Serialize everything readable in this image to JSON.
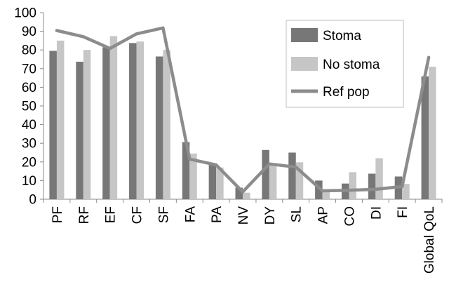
{
  "chart_data": {
    "type": "bar",
    "categories": [
      "PF",
      "RF",
      "EF",
      "CF",
      "SF",
      "FA",
      "PA",
      "NV",
      "DY",
      "SL",
      "AP",
      "CO",
      "DI",
      "FI",
      "Global QoL"
    ],
    "series": [
      {
        "name": "Stoma",
        "type": "bar",
        "color": "#777777",
        "values": [
          79.5,
          73.7,
          81.4,
          83.7,
          76.5,
          30.6,
          18.6,
          6.2,
          26.4,
          25.0,
          10.0,
          8.4,
          13.7,
          12.2,
          65.8
        ]
      },
      {
        "name": "No stoma",
        "type": "bar",
        "color": "#c6c6c6",
        "values": [
          85.0,
          80.0,
          87.4,
          84.5,
          80.0,
          24.5,
          17.0,
          3.5,
          19.0,
          19.8,
          5.0,
          14.5,
          22.0,
          8.2,
          71.0
        ]
      },
      {
        "name": "Ref pop",
        "type": "line",
        "color": "#8c8c8c",
        "values": [
          90.4,
          87.1,
          80.8,
          88.6,
          91.8,
          21.5,
          18.4,
          3.9,
          18.9,
          17.2,
          4.5,
          4.8,
          5.3,
          6.8,
          76.0
        ]
      }
    ],
    "ylim": [
      0,
      100
    ],
    "yticks": [
      0,
      10,
      20,
      30,
      40,
      50,
      60,
      70,
      80,
      90,
      100
    ],
    "title": "",
    "xlabel": "",
    "ylabel": "",
    "grid": false,
    "legend_position": "top-right"
  }
}
